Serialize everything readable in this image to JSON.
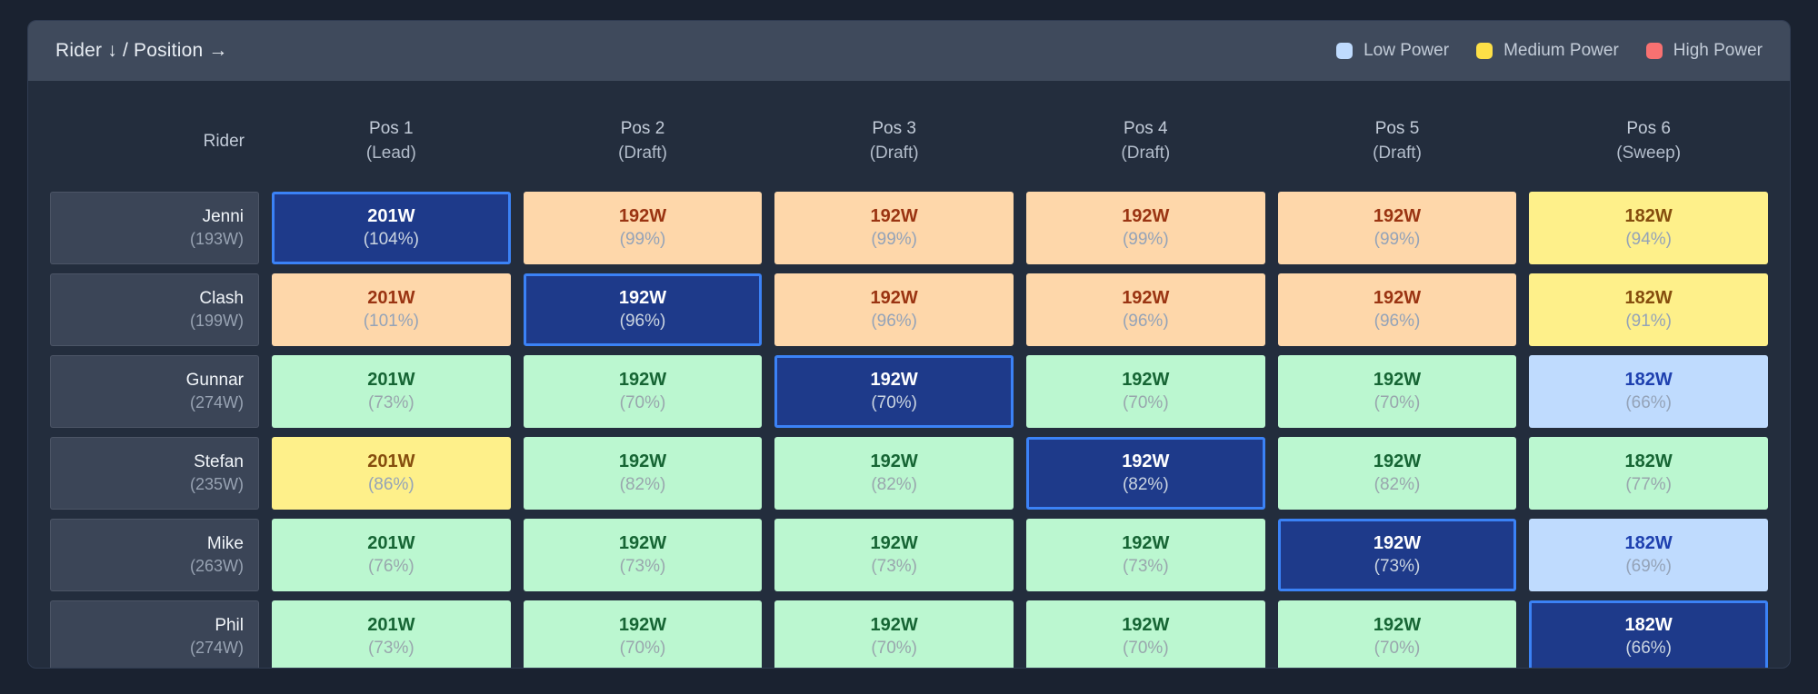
{
  "header": {
    "title": "Rider ↓ / Position →",
    "legend": [
      {
        "label": "Low Power",
        "color": "#bfdbfe"
      },
      {
        "label": "Medium Power",
        "color": "#fde047"
      },
      {
        "label": "High Power",
        "color": "#f87171"
      }
    ]
  },
  "matrix": {
    "rider_header": "Rider",
    "columns": [
      {
        "label": "Pos 1",
        "sub": "(Lead)"
      },
      {
        "label": "Pos 2",
        "sub": "(Draft)"
      },
      {
        "label": "Pos 3",
        "sub": "(Draft)"
      },
      {
        "label": "Pos 4",
        "sub": "(Draft)"
      },
      {
        "label": "Pos 5",
        "sub": "(Draft)"
      },
      {
        "label": "Pos 6",
        "sub": "(Sweep)"
      }
    ],
    "rows": [
      {
        "name": "Jenni",
        "ftp": "(193W)",
        "cells": [
          {
            "value": "201W",
            "pct": "(104%)",
            "level": "selected"
          },
          {
            "value": "192W",
            "pct": "(99%)",
            "level": "high"
          },
          {
            "value": "192W",
            "pct": "(99%)",
            "level": "high"
          },
          {
            "value": "192W",
            "pct": "(99%)",
            "level": "high"
          },
          {
            "value": "192W",
            "pct": "(99%)",
            "level": "high"
          },
          {
            "value": "182W",
            "pct": "(94%)",
            "level": "medium"
          }
        ]
      },
      {
        "name": "Clash",
        "ftp": "(199W)",
        "cells": [
          {
            "value": "201W",
            "pct": "(101%)",
            "level": "high"
          },
          {
            "value": "192W",
            "pct": "(96%)",
            "level": "selected"
          },
          {
            "value": "192W",
            "pct": "(96%)",
            "level": "high"
          },
          {
            "value": "192W",
            "pct": "(96%)",
            "level": "high"
          },
          {
            "value": "192W",
            "pct": "(96%)",
            "level": "high"
          },
          {
            "value": "182W",
            "pct": "(91%)",
            "level": "medium"
          }
        ]
      },
      {
        "name": "Gunnar",
        "ftp": "(274W)",
        "cells": [
          {
            "value": "201W",
            "pct": "(73%)",
            "level": "low"
          },
          {
            "value": "192W",
            "pct": "(70%)",
            "level": "low"
          },
          {
            "value": "192W",
            "pct": "(70%)",
            "level": "selected"
          },
          {
            "value": "192W",
            "pct": "(70%)",
            "level": "low"
          },
          {
            "value": "192W",
            "pct": "(70%)",
            "level": "low"
          },
          {
            "value": "182W",
            "pct": "(66%)",
            "level": "verylow"
          }
        ]
      },
      {
        "name": "Stefan",
        "ftp": "(235W)",
        "cells": [
          {
            "value": "201W",
            "pct": "(86%)",
            "level": "medium"
          },
          {
            "value": "192W",
            "pct": "(82%)",
            "level": "low"
          },
          {
            "value": "192W",
            "pct": "(82%)",
            "level": "low"
          },
          {
            "value": "192W",
            "pct": "(82%)",
            "level": "selected"
          },
          {
            "value": "192W",
            "pct": "(82%)",
            "level": "low"
          },
          {
            "value": "182W",
            "pct": "(77%)",
            "level": "low"
          }
        ]
      },
      {
        "name": "Mike",
        "ftp": "(263W)",
        "cells": [
          {
            "value": "201W",
            "pct": "(76%)",
            "level": "low"
          },
          {
            "value": "192W",
            "pct": "(73%)",
            "level": "low"
          },
          {
            "value": "192W",
            "pct": "(73%)",
            "level": "low"
          },
          {
            "value": "192W",
            "pct": "(73%)",
            "level": "low"
          },
          {
            "value": "192W",
            "pct": "(73%)",
            "level": "selected"
          },
          {
            "value": "182W",
            "pct": "(69%)",
            "level": "verylow"
          }
        ]
      },
      {
        "name": "Phil",
        "ftp": "(274W)",
        "cells": [
          {
            "value": "201W",
            "pct": "(73%)",
            "level": "low"
          },
          {
            "value": "192W",
            "pct": "(70%)",
            "level": "low"
          },
          {
            "value": "192W",
            "pct": "(70%)",
            "level": "low"
          },
          {
            "value": "192W",
            "pct": "(70%)",
            "level": "low"
          },
          {
            "value": "192W",
            "pct": "(70%)",
            "level": "low"
          },
          {
            "value": "182W",
            "pct": "(66%)",
            "level": "selected"
          }
        ]
      }
    ]
  },
  "colors": {
    "page_bg": "#1a2230",
    "panel_bg": "#232d3d",
    "panel_header_bg": "#3f4a5c",
    "row_label_bg": "#3b4557",
    "selected_cell_bg": "#1e3a8a",
    "selected_cell_border": "#3b82f6",
    "high_cell_bg": "#fed7aa",
    "medium_cell_bg": "#fef08a",
    "low_cell_bg": "#bbf7d0",
    "verylow_cell_bg": "#bfdbfe"
  }
}
